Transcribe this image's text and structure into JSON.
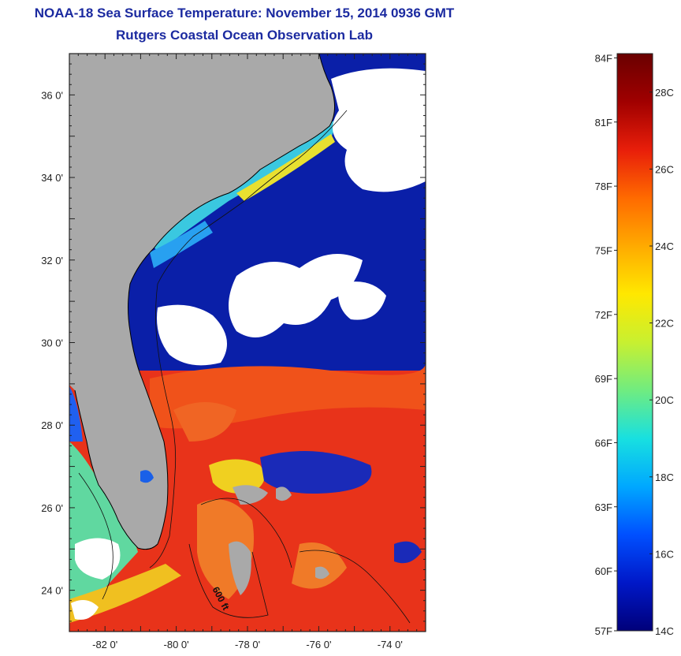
{
  "title": {
    "line1": "NOAA-18 Sea Surface Temperature:  November 15, 2014 0936 GMT",
    "line2": "Rutgers Coastal Ocean Observation Lab"
  },
  "map": {
    "lat_range": [
      23,
      37
    ],
    "lon_range": [
      -83,
      -73
    ],
    "lat_ticks": [
      {
        "value": 36,
        "label": "36 0'"
      },
      {
        "value": 34,
        "label": "34 0'"
      },
      {
        "value": 32,
        "label": "32 0'"
      },
      {
        "value": 30,
        "label": "30 0'"
      },
      {
        "value": 28,
        "label": "28 0'"
      },
      {
        "value": 26,
        "label": "26 0'"
      },
      {
        "value": 24,
        "label": "24 0'"
      }
    ],
    "lon_ticks": [
      {
        "value": -82,
        "label": "-82 0'"
      },
      {
        "value": -80,
        "label": "-80 0'"
      },
      {
        "value": -78,
        "label": "-78 0'"
      },
      {
        "value": -76,
        "label": "-76 0'"
      },
      {
        "value": -74,
        "label": "-74 0'"
      }
    ],
    "contour_label": "600 ft",
    "colors": {
      "land": "#a9a9a9",
      "cloud": "#ffffff",
      "cold_water": "#0a1fa8",
      "warm_water": "#e8331a",
      "coast_line": "#000000"
    }
  },
  "colorbar": {
    "min_c": 14,
    "max_c": 29,
    "fahrenheit_labels": [
      {
        "value_f": 84,
        "label": "84F"
      },
      {
        "value_f": 81,
        "label": "81F"
      },
      {
        "value_f": 78,
        "label": "78F"
      },
      {
        "value_f": 75,
        "label": "75F"
      },
      {
        "value_f": 72,
        "label": "72F"
      },
      {
        "value_f": 69,
        "label": "69F"
      },
      {
        "value_f": 66,
        "label": "66F"
      },
      {
        "value_f": 63,
        "label": "63F"
      },
      {
        "value_f": 60,
        "label": "60F"
      },
      {
        "value_f": 57,
        "label": "57F"
      }
    ],
    "celsius_labels": [
      {
        "value_c": 28,
        "label": "28C"
      },
      {
        "value_c": 26,
        "label": "26C"
      },
      {
        "value_c": 24,
        "label": "24C"
      },
      {
        "value_c": 22,
        "label": "22C"
      },
      {
        "value_c": 20,
        "label": "20C"
      },
      {
        "value_c": 18,
        "label": "18C"
      },
      {
        "value_c": 16,
        "label": "16C"
      },
      {
        "value_c": 14,
        "label": "14C"
      }
    ],
    "gradient_stops": [
      "#00007a",
      "#0018c8",
      "#0050ff",
      "#00a8ff",
      "#18e0e0",
      "#70ec80",
      "#c8f030",
      "#ffe800",
      "#ffaa00",
      "#ff6a00",
      "#e81e0a",
      "#a00000",
      "#6a0000"
    ]
  }
}
